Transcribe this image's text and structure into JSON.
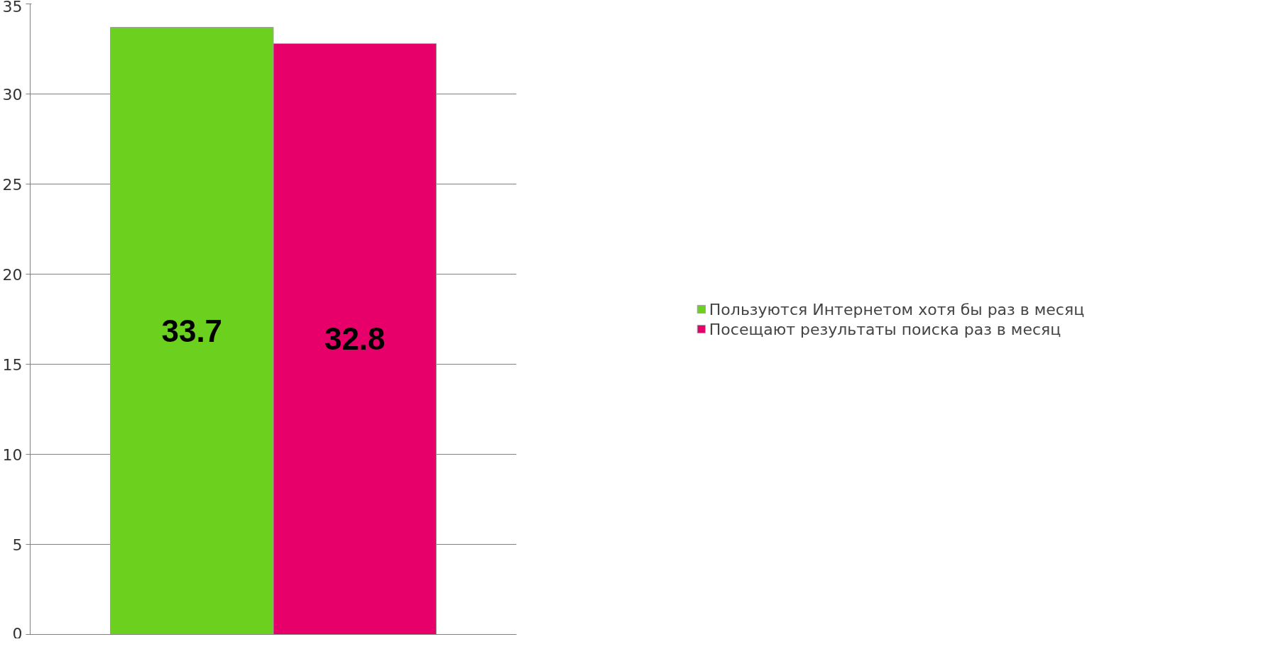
{
  "chart_data": {
    "type": "bar",
    "categories": [
      null
    ],
    "series": [
      {
        "name": "Пользуются Интернетом хотя бы раз в месяц",
        "color": "#6cd11e",
        "values": [
          33.7
        ]
      },
      {
        "name": "Посещают результаты поиска раз в месяц",
        "color": "#e8006a",
        "values": [
          32.8
        ]
      }
    ],
    "ylim": [
      0,
      35
    ],
    "yticks": [
      0,
      5,
      10,
      15,
      20,
      25,
      30,
      35
    ],
    "grid": "y",
    "legend": "right",
    "data_labels": true,
    "tick_labels": "y"
  }
}
